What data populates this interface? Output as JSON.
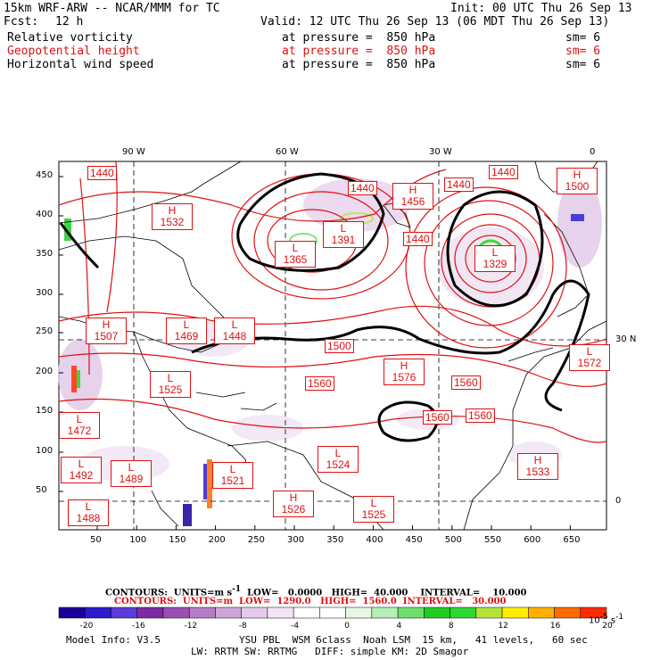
{
  "header": {
    "title": "15km WRF-ARW -- NCAR/MMM for TC",
    "init": "Init: 00 UTC Thu 26 Sep 13",
    "fcst_label": "Fcst:",
    "fcst_value": "12 h",
    "valid": "Valid: 12 UTC Thu 26 Sep 13 (06 MDT Thu 26 Sep 13)"
  },
  "fields": [
    {
      "name": "Relative vorticity",
      "pressure": "at pressure =  850 hPa",
      "sm": "sm= 6",
      "color": "#000000"
    },
    {
      "name": "Geopotential height",
      "pressure": "at pressure =  850 hPa",
      "sm": "sm= 6",
      "color": "#e01010"
    },
    {
      "name": "Horizontal wind speed",
      "pressure": "at pressure =  850 hPa",
      "sm": "sm= 6",
      "color": "#000000"
    }
  ],
  "map": {
    "top_lon_labels": [
      "90 W",
      "60 W",
      "30 W",
      "0"
    ],
    "right_lat_labels": [
      "30 N",
      "0"
    ],
    "y_ticks": [
      "450",
      "400",
      "350",
      "300",
      "250",
      "200",
      "150",
      "100",
      "50"
    ],
    "x_ticks": [
      "50",
      "100",
      "150",
      "200",
      "250",
      "300",
      "350",
      "400",
      "450",
      "500",
      "550",
      "600",
      "650"
    ],
    "height_labels": [
      {
        "kind": "H",
        "value": "1532"
      },
      {
        "kind": "H",
        "value": "1456"
      },
      {
        "kind": "L",
        "value": "1391"
      },
      {
        "kind": "L",
        "value": "1365"
      },
      {
        "kind": "L",
        "value": "1329"
      },
      {
        "kind": "H",
        "value": "1507"
      },
      {
        "kind": "L",
        "value": "1469"
      },
      {
        "kind": "L",
        "value": "1448"
      },
      {
        "kind": "H",
        "value": "1576"
      },
      {
        "kind": "L",
        "value": "1525"
      },
      {
        "kind": "L",
        "value": "1524"
      },
      {
        "kind": "L",
        "value": "1492"
      },
      {
        "kind": "L",
        "value": "1489"
      },
      {
        "kind": "L",
        "value": "1488"
      },
      {
        "kind": "L",
        "value": "1521"
      },
      {
        "kind": "H",
        "value": "1526"
      },
      {
        "kind": "L",
        "value": "1525"
      },
      {
        "kind": "H",
        "value": "1533"
      },
      {
        "kind": "H",
        "value": "1500"
      },
      {
        "kind": "L",
        "value": "1572"
      },
      {
        "kind": "L",
        "value": "1472"
      }
    ],
    "contour_values": [
      "1440",
      "1440",
      "1440",
      "1440",
      "1440",
      "1500",
      "1560",
      "1560",
      "1560",
      "1560"
    ]
  },
  "legend": {
    "line1": "CONTOURS:  UNITS=m s",
    "line1_low": "LOW=   0.0000",
    "line1_high": "HIGH=  40.000",
    "line1_int": "INTERVAL=    10.000",
    "line2": "CONTOURS:  UNITS=m",
    "line2_low": "LOW=  1290.0",
    "line2_high": "HIGH=  1560.0",
    "line2_int": "INTERVAL=   30.000",
    "colorbar_labels": [
      "-20",
      "-16",
      "-12",
      "-8",
      "-4",
      "0",
      "4",
      "8",
      "12",
      "16",
      "20"
    ],
    "colorbar_units": "10",
    "colorbar_colors": [
      "#1a0099",
      "#2c1ccc",
      "#5b3bd9",
      "#7d2aa5",
      "#9b4fb5",
      "#b77cc8",
      "#cfa6d8",
      "#e3cbe9",
      "#f2e6f5",
      "#ffffff",
      "#ffffff",
      "#e6f7e6",
      "#b8eeb8",
      "#6ce06c",
      "#22cc22",
      "#2cd930",
      "#b6e23a",
      "#ffee00",
      "#ffb000",
      "#ff6a00",
      "#ff2a00"
    ]
  },
  "footer": {
    "model": "Model Info: V3.5",
    "line1": "YSU PBL  WSM 6class  Noah LSM  15 km,   41 levels,   60 sec",
    "line2": "LW: RRTM SW: RRTMG   DIFF: simple KM: 2D Smagor"
  }
}
